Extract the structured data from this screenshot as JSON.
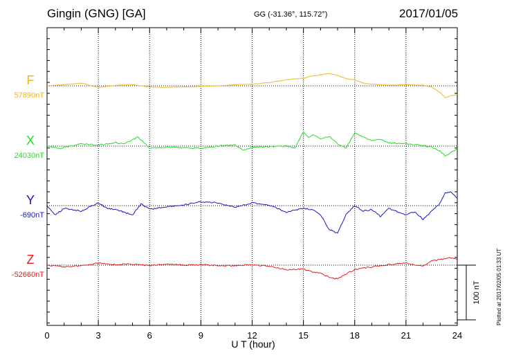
{
  "header": {
    "station": "Gingin (GNG)  [GA]",
    "coords": "GG (-31.36°, 115.72°)",
    "date": "2017/01/05"
  },
  "footer": {
    "plotted": "Plotted at 2017/02/05 01:33 UT"
  },
  "chart_data": {
    "type": "line",
    "xlabel": "U T (hour)",
    "xlim": [
      0,
      24
    ],
    "xticks": [
      "0",
      "3",
      "6",
      "9",
      "12",
      "15",
      "18",
      "21",
      "24"
    ],
    "grid": true,
    "scale_bar": {
      "label": "100 nT",
      "value_nT": 100
    },
    "series": [
      {
        "name": "F",
        "baseline_label": "57890nT",
        "color": "#f5b41e",
        "x": [
          0,
          1,
          2,
          3,
          4,
          5,
          6,
          7,
          8,
          9,
          10,
          11,
          12,
          13,
          14,
          15,
          15.5,
          16,
          16.5,
          17,
          17.5,
          18,
          18.5,
          19,
          20,
          21,
          22,
          22.5,
          23,
          23.3,
          23.6,
          24
        ],
        "y": [
          57890,
          57892,
          57895,
          57887,
          57891,
          57892,
          57888,
          57887,
          57888,
          57889,
          57890,
          57892,
          57893,
          57896,
          57901,
          57904,
          57908,
          57910,
          57913,
          57909,
          57903,
          57901,
          57895,
          57893,
          57891,
          57892,
          57891,
          57888,
          57878,
          57868,
          57872,
          57874
        ]
      },
      {
        "name": "X",
        "baseline_label": "24030nT",
        "color": "#22dd22",
        "x": [
          0,
          0.8,
          1.5,
          2,
          3,
          4,
          4.5,
          5,
          5.3,
          5.7,
          6,
          7,
          8,
          9,
          10,
          11,
          11.5,
          12,
          13,
          14,
          14.5,
          15,
          15.3,
          15.6,
          16,
          16.5,
          17,
          17.5,
          18,
          18.5,
          19,
          19.5,
          20,
          21,
          22,
          22.5,
          23,
          23.3,
          23.6,
          24
        ],
        "y": [
          24034,
          24030,
          24035,
          24038,
          24036,
          24040,
          24038,
          24045,
          24050,
          24040,
          24030,
          24032,
          24031,
          24030,
          24034,
          24036,
          24026,
          24032,
          24033,
          24034,
          24030,
          24060,
          24050,
          24055,
          24048,
          24052,
          24038,
          24030,
          24058,
          24050,
          24044,
          24046,
          24040,
          24038,
          24035,
          24032,
          24025,
          24015,
          24022,
          24030
        ]
      },
      {
        "name": "Y",
        "baseline_label": "-690nT",
        "color": "#1515cc",
        "x": [
          0,
          0.5,
          1,
          2,
          3,
          3.5,
          4,
          5,
          5.5,
          6,
          7,
          8,
          9,
          10,
          11,
          12,
          13,
          14,
          15,
          15.5,
          16,
          16.5,
          17,
          17.5,
          18,
          18.5,
          19,
          19.5,
          20,
          21,
          21.5,
          22,
          22.5,
          23,
          23.3,
          23.6,
          24
        ],
        "y": [
          -695,
          -712,
          -700,
          -705,
          -690,
          -700,
          -702,
          -712,
          -692,
          -702,
          -697,
          -694,
          -688,
          -690,
          -698,
          -690,
          -694,
          -707,
          -700,
          -702,
          -712,
          -738,
          -746,
          -710,
          -695,
          -705,
          -702,
          -715,
          -700,
          -712,
          -706,
          -720,
          -705,
          -690,
          -672,
          -670,
          -682
        ]
      },
      {
        "name": "Z",
        "baseline_label": "-52660nT",
        "color": "#e51e1e",
        "x": [
          0,
          1,
          2,
          3,
          4,
          5,
          6,
          7,
          8,
          9,
          10,
          11,
          12,
          13,
          14,
          14.5,
          15,
          15.5,
          16,
          16.5,
          17,
          17.5,
          18,
          19,
          20,
          21,
          21.5,
          22,
          22.5,
          23,
          23.5,
          24
        ],
        "y": [
          -52660,
          -52663,
          -52661,
          -52656,
          -52659,
          -52658,
          -52661,
          -52658,
          -52660,
          -52659,
          -52661,
          -52661,
          -52659,
          -52662,
          -52668,
          -52668,
          -52667,
          -52672,
          -52675,
          -52682,
          -52685,
          -52676,
          -52668,
          -52663,
          -52659,
          -52656,
          -52660,
          -52662,
          -52652,
          -52650,
          -52646,
          -52650
        ]
      }
    ]
  }
}
